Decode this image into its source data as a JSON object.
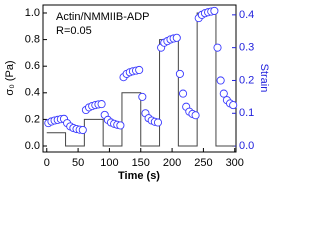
{
  "chart_data": {
    "type": "scatter",
    "x_label": "Time  (s)",
    "y_label": "σ₀ (Pa)",
    "y2_label": "Strain",
    "annotations": [
      "Actin/NMMIIB-ADP",
      "R=0.05"
    ],
    "xlim": [
      -6,
      302
    ],
    "xticks": [
      0,
      50,
      100,
      150,
      200,
      250,
      300
    ],
    "ylim": [
      -0.045,
      1.06
    ],
    "yticks": [
      {
        "value": 0,
        "label": "0.0"
      },
      {
        "value": 0.2,
        "label": "0.2"
      },
      {
        "value": 0.4,
        "label": "0.4"
      },
      {
        "value": 0.6,
        "label": "0.6"
      },
      {
        "value": 0.8,
        "label": "0.8"
      },
      {
        "value": 1,
        "label": "1.0"
      }
    ],
    "y2lim": [
      -0.018,
      0.43
    ],
    "y2ticks": [
      {
        "value": 0,
        "label": "0.0"
      },
      0.1,
      0.2,
      0.3,
      0.4
    ],
    "y2_color": "#2222dd",
    "series": [
      {
        "name": "stress",
        "kind": "step",
        "color": "#444444",
        "axis": "y",
        "x": [
          0,
          30,
          60,
          90,
          120,
          150,
          180,
          210,
          240,
          270,
          300
        ],
        "values": [
          0.1,
          0,
          0.2,
          0,
          0.4,
          0,
          0.8,
          0,
          1.0,
          0,
          0
        ]
      },
      {
        "name": "strain",
        "kind": "points",
        "color": "#3a3aff",
        "axis": "y2",
        "x": [
          2.5,
          7.5,
          12.5,
          17.5,
          22.5,
          27.5,
          32.5,
          37.5,
          42.5,
          47.5,
          52.5,
          57.5,
          62.5,
          67.5,
          72.5,
          77.5,
          82.5,
          87.5,
          92.5,
          97.5,
          102.5,
          107.5,
          112.5,
          117.5,
          122.5,
          127.5,
          132.5,
          137.5,
          142.5,
          147.5,
          152.5,
          157.5,
          162.5,
          167.5,
          172.5,
          177.5,
          182.5,
          187.5,
          192.5,
          197.5,
          202.5,
          207.5,
          212.5,
          217.5,
          222.5,
          227.5,
          232.5,
          237.5,
          242.5,
          247.5,
          252.5,
          257.5,
          262.5,
          267.5,
          272.5,
          277.5,
          282.5,
          287.5,
          292.5,
          297.5
        ],
        "values": [
          0.07,
          0.075,
          0.078,
          0.08,
          0.082,
          0.083,
          0.07,
          0.06,
          0.055,
          0.052,
          0.05,
          0.049,
          0.11,
          0.118,
          0.122,
          0.125,
          0.127,
          0.128,
          0.095,
          0.08,
          0.072,
          0.068,
          0.065,
          0.063,
          0.21,
          0.22,
          0.225,
          0.228,
          0.23,
          0.232,
          0.15,
          0.1,
          0.085,
          0.078,
          0.074,
          0.072,
          0.3,
          0.315,
          0.32,
          0.325,
          0.328,
          0.33,
          0.22,
          0.16,
          0.12,
          0.105,
          0.098,
          0.094,
          0.39,
          0.4,
          0.405,
          0.408,
          0.41,
          0.412,
          0.3,
          0.2,
          0.16,
          0.14,
          0.13,
          0.125
        ]
      }
    ]
  }
}
